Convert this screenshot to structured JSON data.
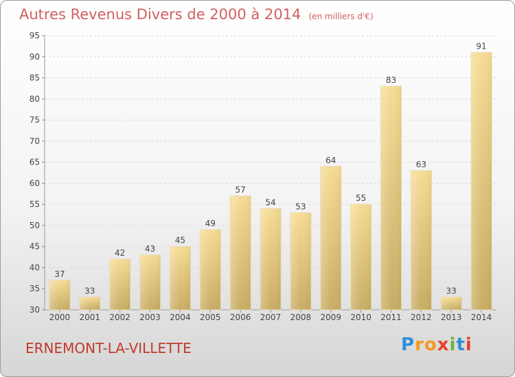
{
  "chart_data": {
    "type": "bar",
    "title": "Autres Revenus Divers de 2000 à 2014",
    "subtitle": "(en milliers d'€)",
    "categories": [
      "2000",
      "2001",
      "2002",
      "2003",
      "2004",
      "2005",
      "2006",
      "2007",
      "2008",
      "2009",
      "2010",
      "2011",
      "2012",
      "2013",
      "2014"
    ],
    "values": [
      37,
      33,
      42,
      43,
      45,
      49,
      57,
      54,
      53,
      64,
      55,
      83,
      63,
      33,
      91
    ],
    "ylim": [
      30,
      95
    ],
    "yticks": [
      30,
      35,
      40,
      45,
      50,
      55,
      60,
      65,
      70,
      75,
      80,
      85,
      90,
      95
    ],
    "grid": true,
    "bar_color": "#e8cc80"
  },
  "footer": {
    "commune": "ERNEMONT-LA-VILLETTE",
    "logo_letters": [
      "P",
      "r",
      "o",
      "x",
      "i",
      "t",
      "i"
    ],
    "logo_colors": [
      "#2d8fd8",
      "#f39a1e",
      "#f39a1e",
      "#e83e2b",
      "#6cb33f",
      "#2d8fd8",
      "#e83e2b"
    ]
  }
}
